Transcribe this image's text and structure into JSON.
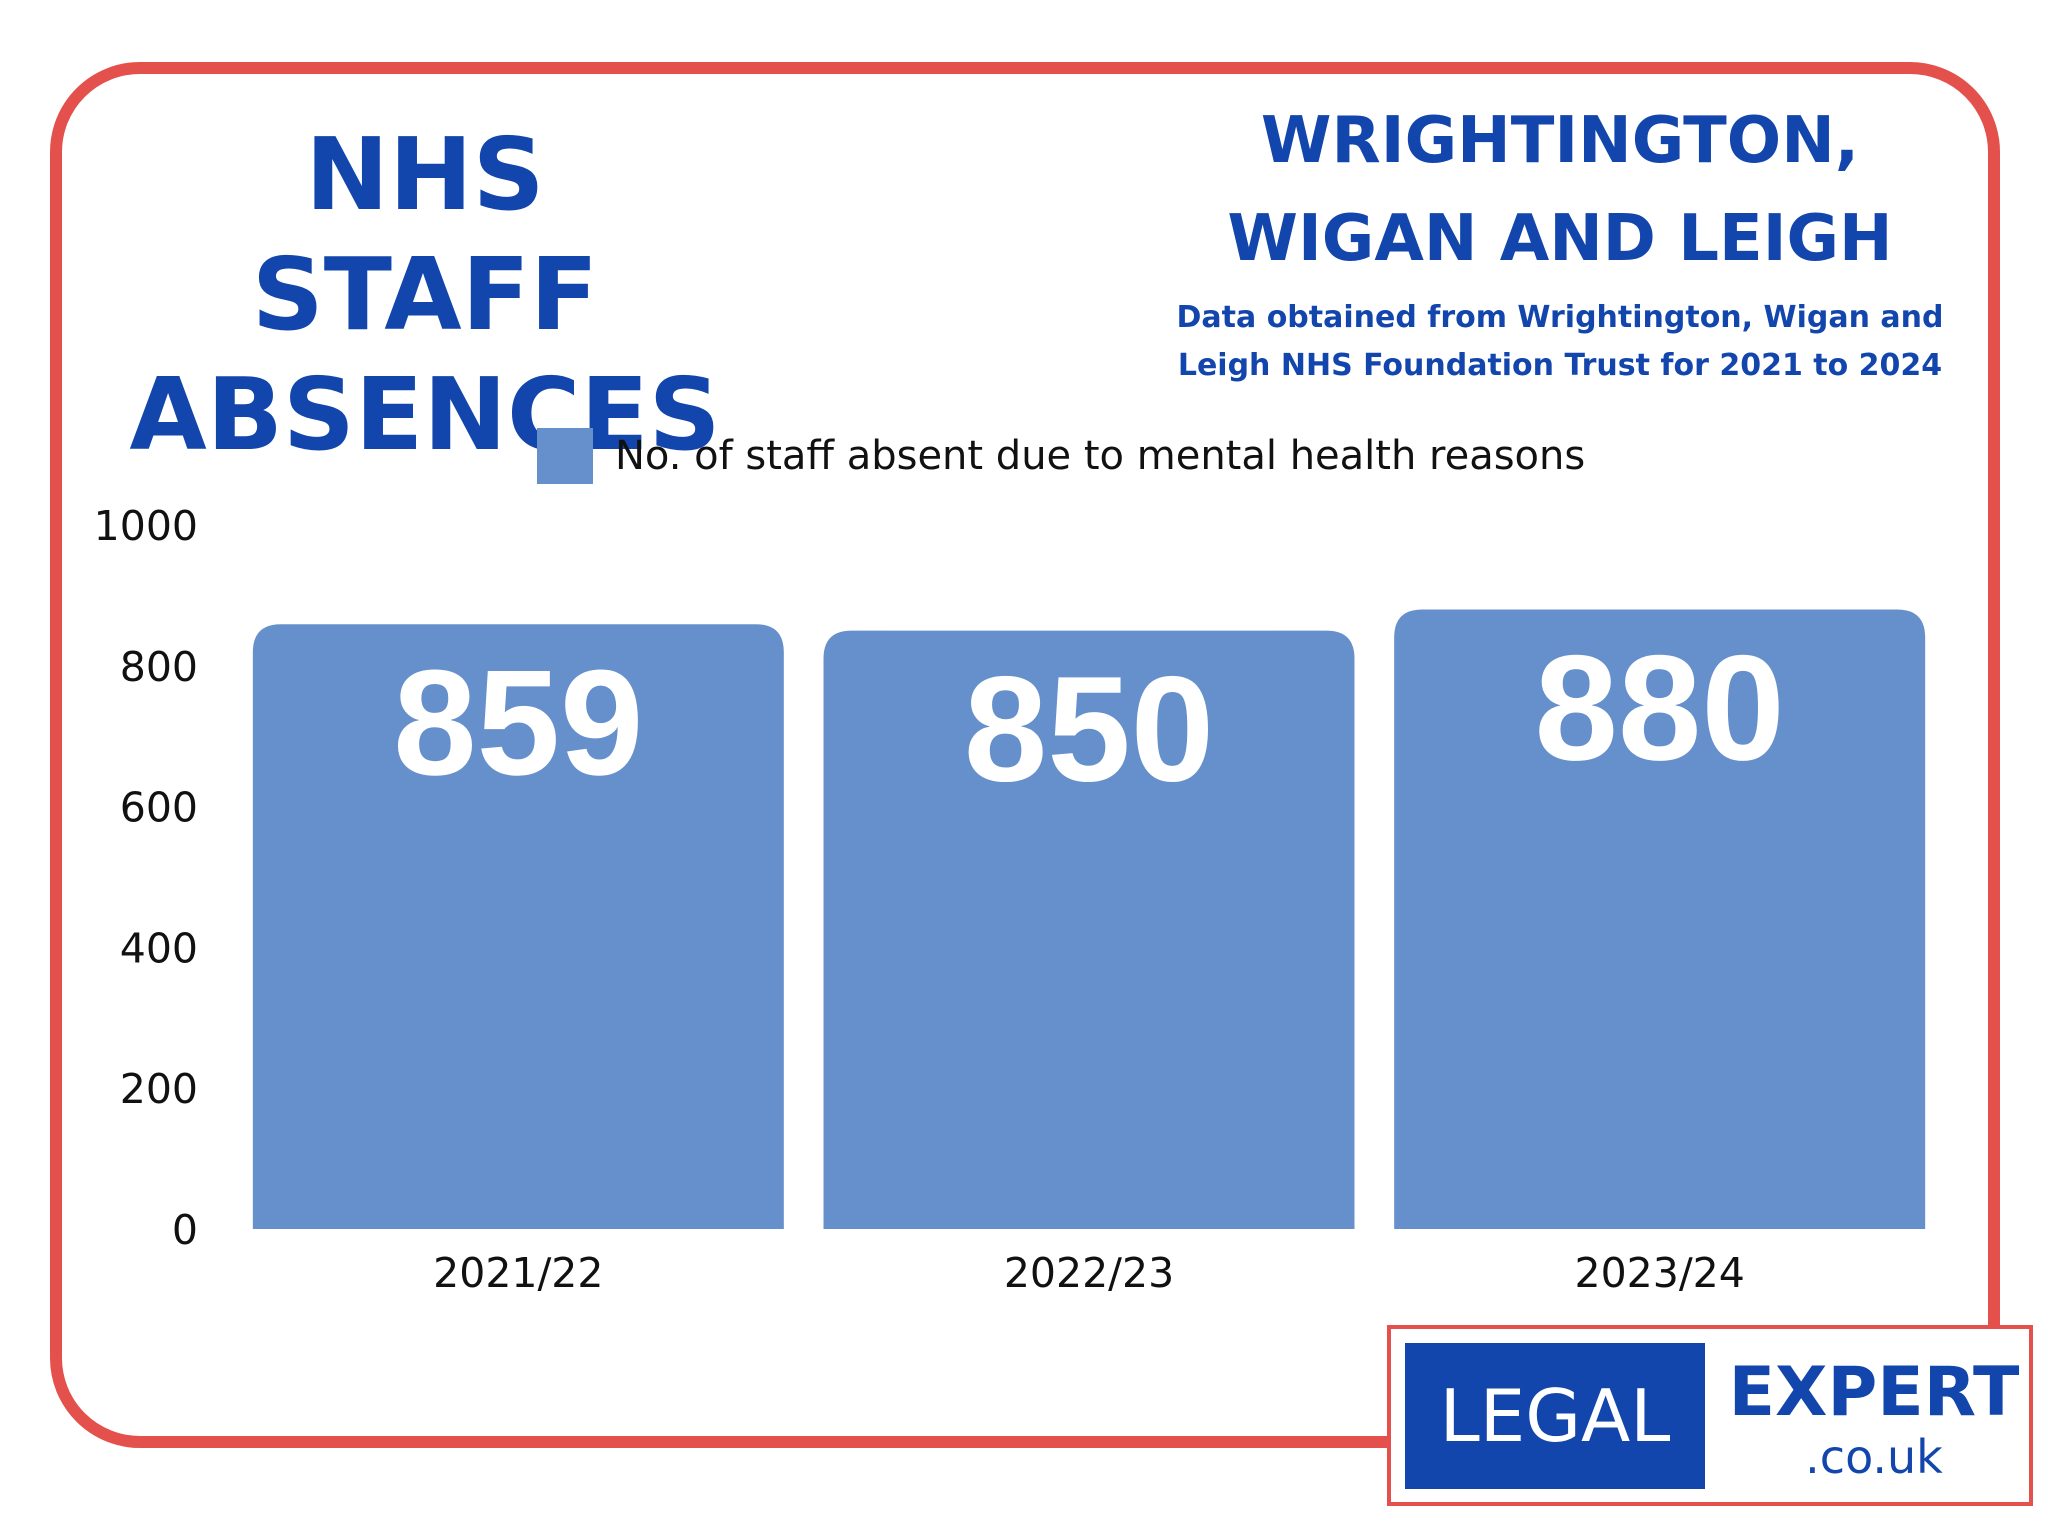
{
  "header": {
    "title": "NHS STAFF ABSENCES",
    "region": "WRIGHTINGTON, WIGAN AND LEIGH",
    "source_note": "Data obtained from Wrightington, Wigan and Leigh NHS Foundation Trust for 2021 to 2024"
  },
  "colors": {
    "bar": "#6690cc",
    "frame": "#e4504b",
    "brand_blue": "#1346ad"
  },
  "chart_data": {
    "type": "bar",
    "categories": [
      "2021/22",
      "2022/23",
      "2023/24"
    ],
    "series": [
      {
        "name": "No. of staff absent due to mental health reasons",
        "values": [
          859,
          850,
          880
        ]
      }
    ],
    "yticks": [
      "0",
      "200",
      "400",
      "600",
      "800",
      "1000"
    ],
    "ylim": [
      0,
      1000
    ],
    "data_labels": [
      "859",
      "850",
      "880"
    ],
    "legend_position": "top-center",
    "grid": false
  },
  "logo": {
    "left_text": "LEGAL",
    "right_text": "EXPERT",
    "domain_text": ".co.uk"
  }
}
